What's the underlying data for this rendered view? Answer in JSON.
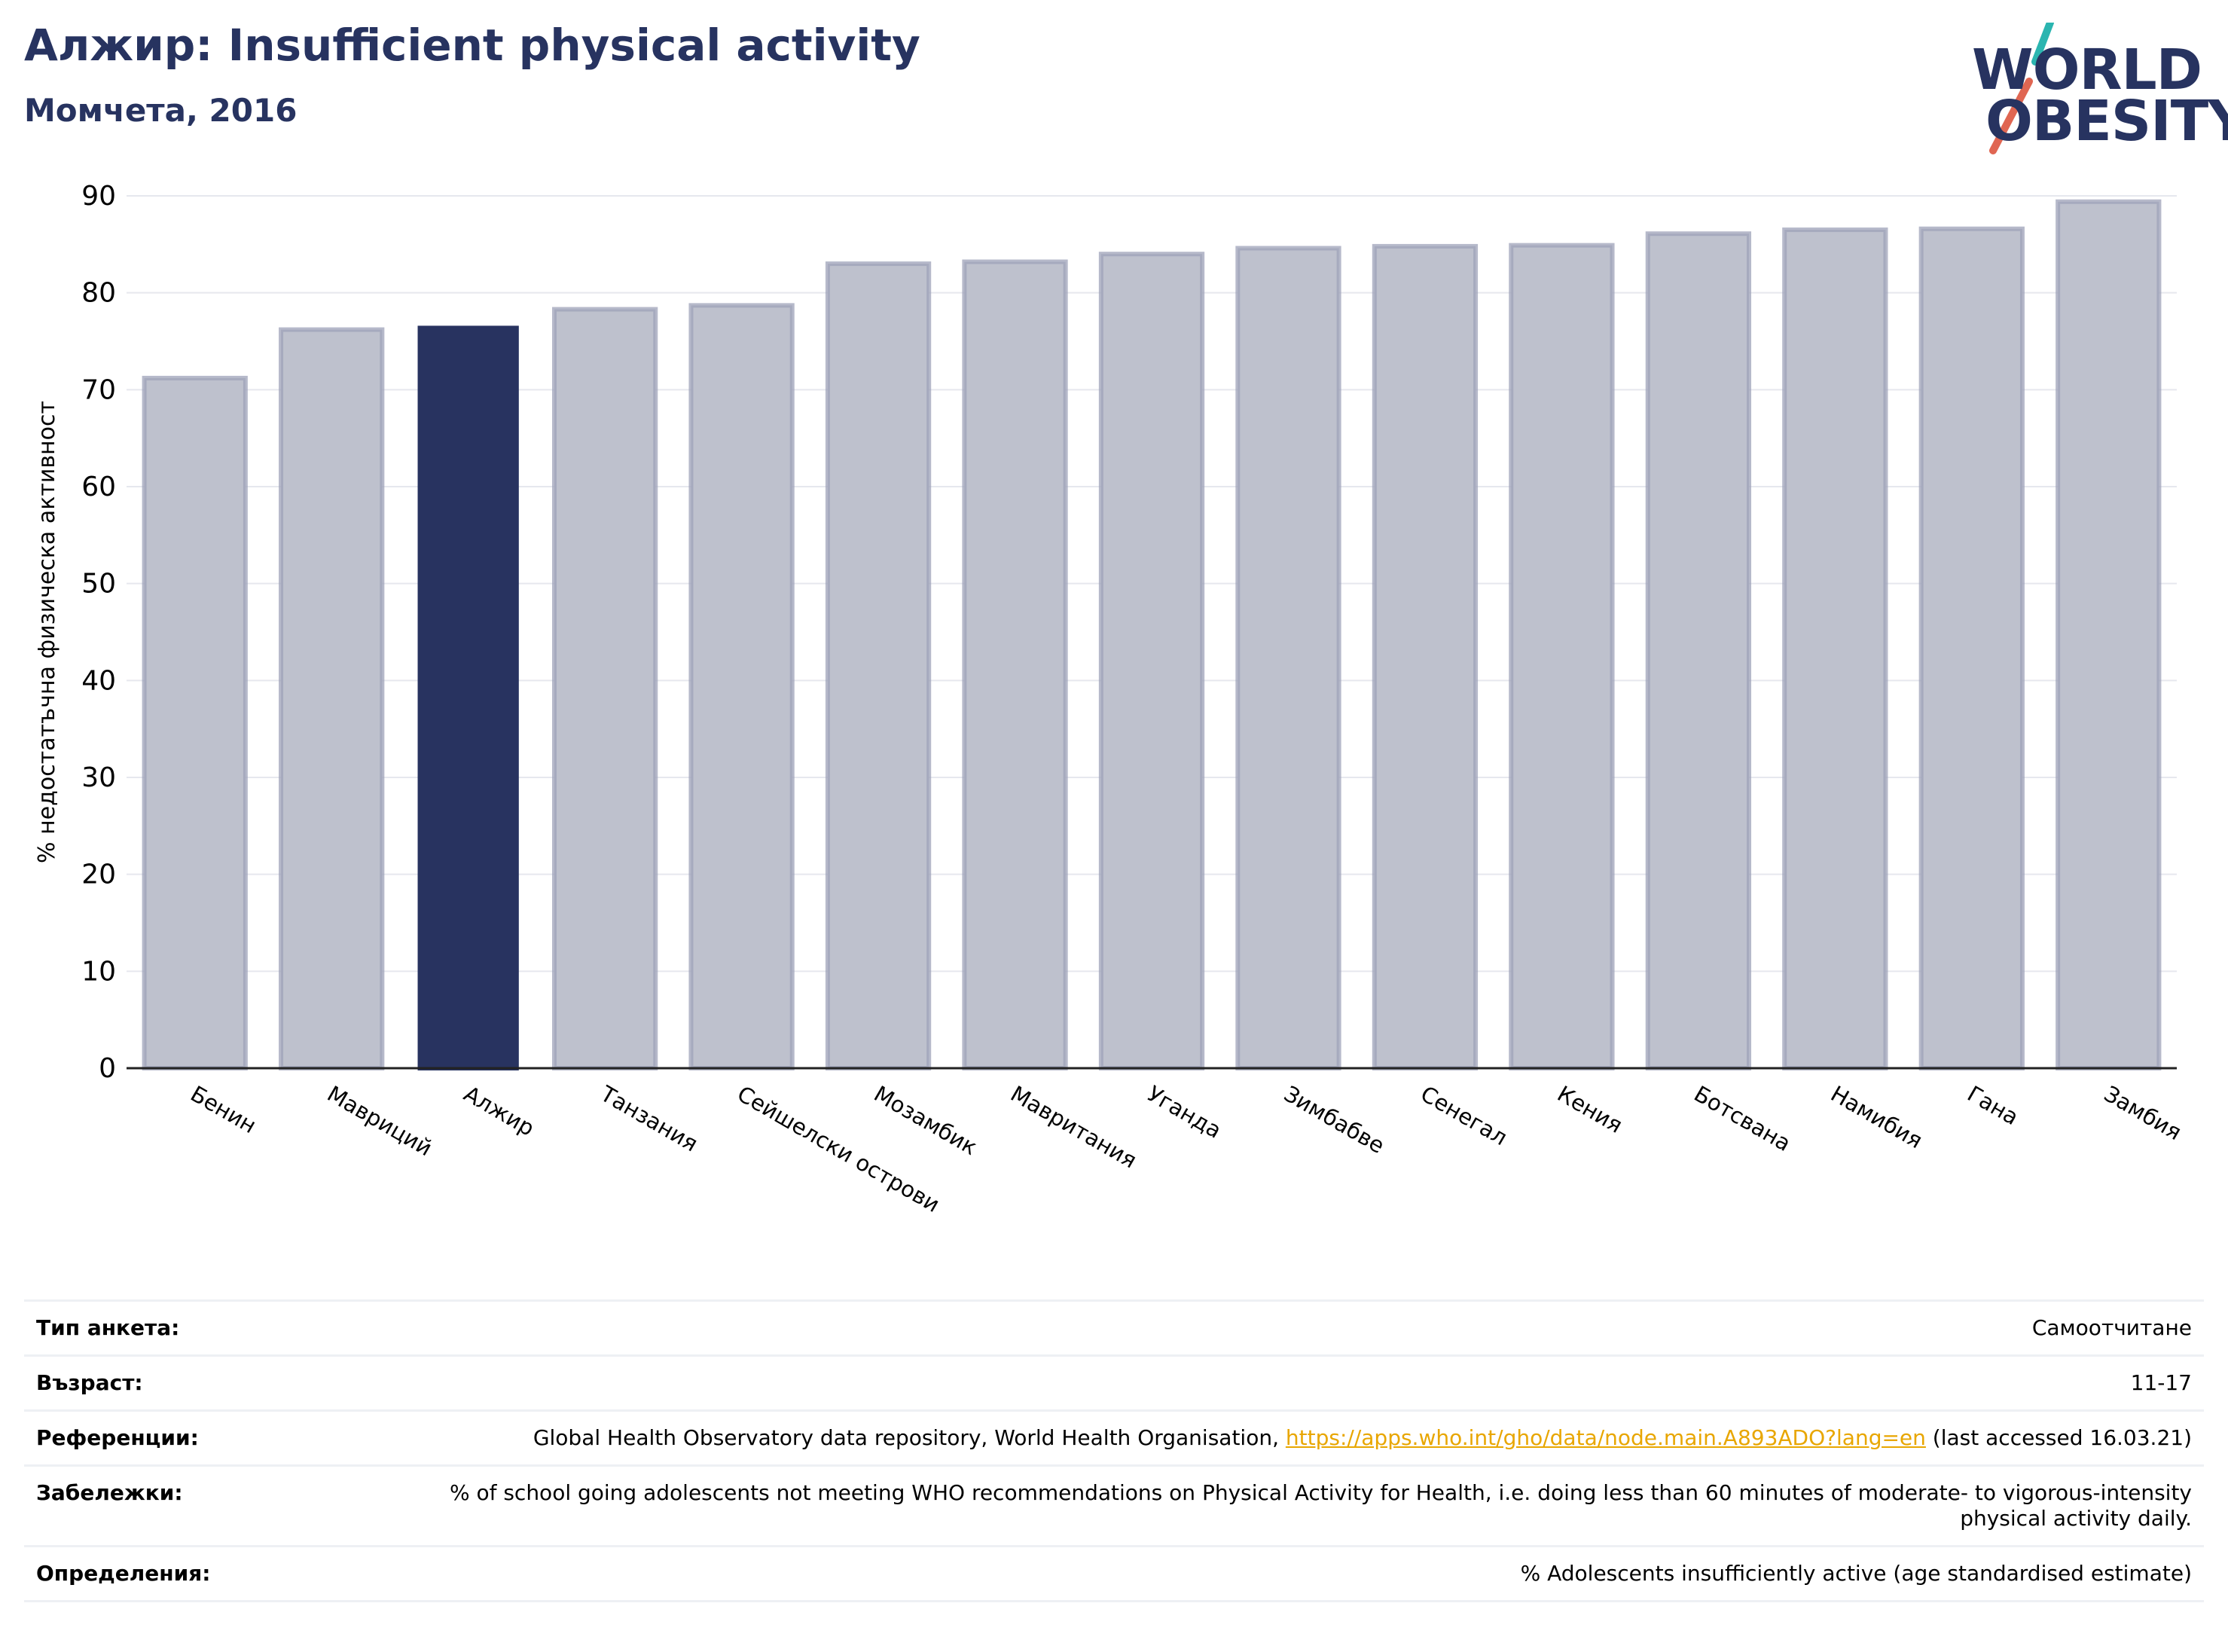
{
  "header": {
    "title": "Алжир: Insufficient physical activity",
    "subtitle": "Момчета, 2016"
  },
  "logo": {
    "line1": "WORLD",
    "line2": "OBESITY",
    "colors": {
      "text": "#273360",
      "slash_top": "#2bb5b0",
      "slash_bottom": "#e06652"
    }
  },
  "chart_data": {
    "type": "bar",
    "title": "",
    "xlabel": "",
    "ylabel": "% недостатъчна физическа активност",
    "ylim": [
      0,
      90
    ],
    "yticks": [
      0,
      10,
      20,
      30,
      40,
      50,
      60,
      70,
      80,
      90
    ],
    "grid": true,
    "highlight": "Алжир",
    "colors": {
      "highlight": "#283360",
      "other": "#bec1cd",
      "other_border": "#9da2b8"
    },
    "categories": [
      "Бенин",
      "Мавриций",
      "Алжир",
      "Танзания",
      "Сейшелски острови",
      "Мозамбик",
      "Мавритания",
      "Уганда",
      "Зимбабве",
      "Сенегал",
      "Кения",
      "Ботсвана",
      "Намибия",
      "Гана",
      "Замбия"
    ],
    "values": [
      71.2,
      76.2,
      76.6,
      78.3,
      78.7,
      83.0,
      83.2,
      84.0,
      84.6,
      84.8,
      84.9,
      86.1,
      86.5,
      86.6,
      89.4
    ]
  },
  "info": {
    "survey_type": {
      "label": "Тип анкета:",
      "value": "Самоотчитане"
    },
    "age": {
      "label": "Възраст:",
      "value": "11-17"
    },
    "references": {
      "label": "Референции:",
      "text_before": "Global Health Observatory data repository, World Health Organisation, ",
      "link": "https://apps.who.int/gho/data/node.main.A893ADO?lang=en",
      "text_after": " (last accessed 16.03.21)"
    },
    "notes": {
      "label": "Забележки:",
      "value": "% of school going adolescents not meeting WHO recommendations on Physical Activity for Health, i.e. doing less than 60 minutes of moderate- to vigorous-intensity physical activity daily."
    },
    "definitions": {
      "label": "Определения:",
      "value": "% Adolescents insufficiently active (age standardised estimate)"
    }
  }
}
